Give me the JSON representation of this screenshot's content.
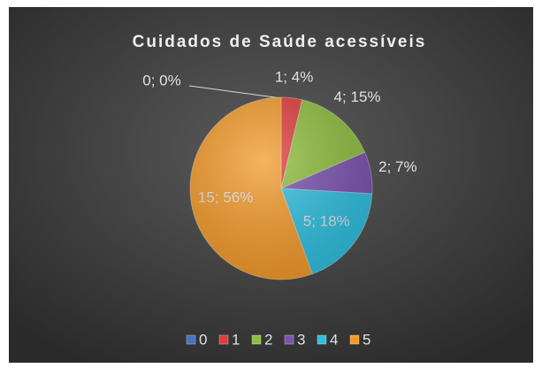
{
  "chart_data": {
    "type": "pie",
    "title": "Cuidados de Saúde acessíveis",
    "categories": [
      "0",
      "1",
      "2",
      "3",
      "4",
      "5"
    ],
    "values": [
      0,
      1,
      4,
      2,
      5,
      15
    ],
    "value_labels": [
      "0; 0%",
      "1; 4%",
      "4; 15%",
      "2; 7%",
      "5; 18%",
      "15; 56%"
    ],
    "colors": [
      "#4472c4",
      "#e03c3c",
      "#8fbf3f",
      "#7b52b0",
      "#2fbfe0",
      "#f39a2a"
    ],
    "legend": "bottom"
  }
}
